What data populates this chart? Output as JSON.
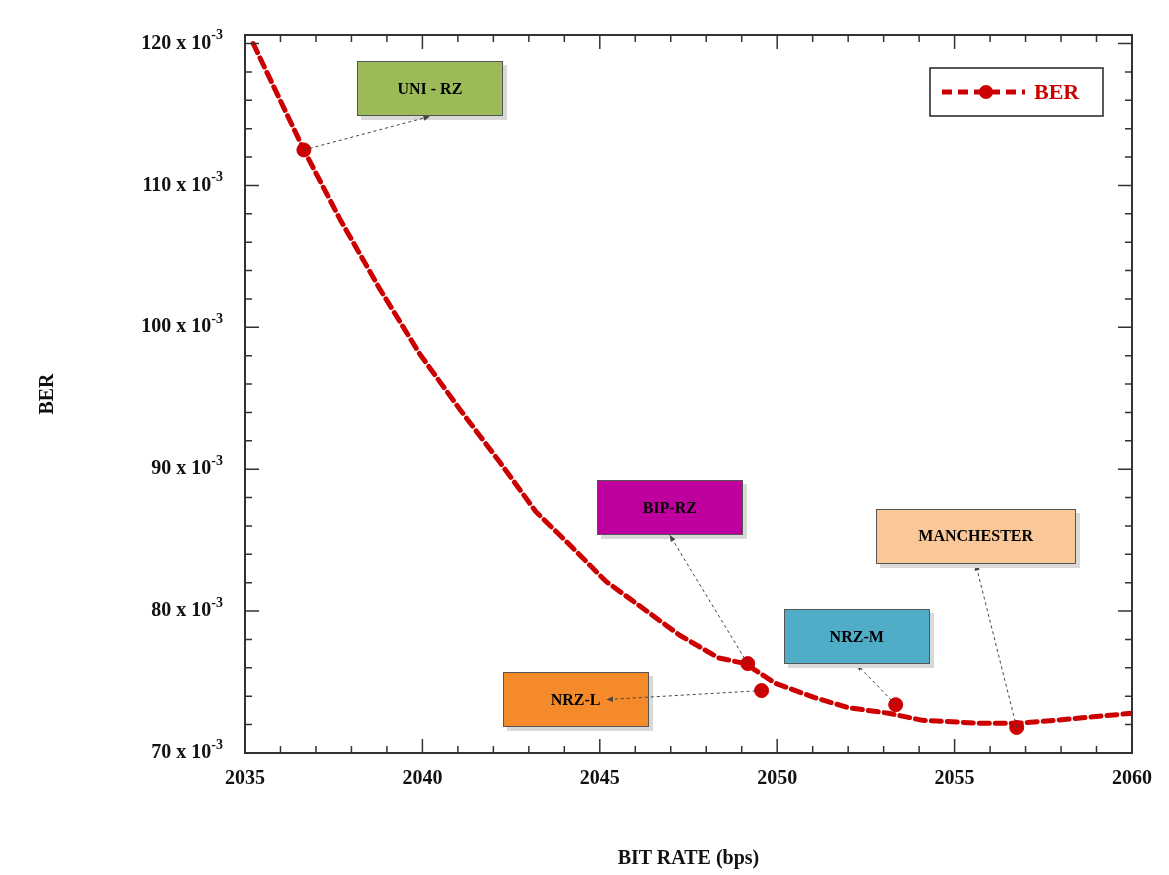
{
  "chart_data": {
    "type": "line",
    "xlabel": "BIT RATE (bps)",
    "ylabel": "BER",
    "xlim": [
      2035,
      2060
    ],
    "xticks": [
      2035,
      2040,
      2045,
      2050,
      2055,
      2060
    ],
    "ylim": [
      0.07,
      0.1206
    ],
    "yticks": [
      {
        "value": 0.07,
        "label": "70 x 10$^{-3}$"
      },
      {
        "value": 0.08,
        "label": "80 x 10$^{-3}$"
      },
      {
        "value": 0.09,
        "label": "90 x 10$^{-3}$"
      },
      {
        "value": 0.1,
        "label": "100 x 10$^{-3}$"
      },
      {
        "value": 0.11,
        "label": "110 x 10$^{-3}$"
      },
      {
        "value": 0.12,
        "label": "120 x 10$^{-3}$"
      }
    ],
    "legend": "top right",
    "series": [
      {
        "name": "BER",
        "type": "line",
        "color": "#cc0000",
        "line_style": "dashed",
        "marker": "none",
        "x": [
          2035.23,
          2036.66,
          2037.68,
          2038.8,
          2039.93,
          2041.06,
          2042.18,
          2043.2,
          2044.18,
          2045.17,
          2046.27,
          2047.25,
          2048.35,
          2049.1,
          2049.96,
          2051.06,
          2052.0,
          2053.14,
          2054.1,
          2055.7,
          2056.8,
          2057.8,
          2060
        ],
        "values": [
          0.12,
          0.1125,
          0.1076,
          0.1027,
          0.0981,
          0.0942,
          0.0905,
          0.087,
          0.0846,
          0.0821,
          0.0801,
          0.0783,
          0.0767,
          0.0763,
          0.0749,
          0.0739,
          0.0732,
          0.0728,
          0.0723,
          0.0721,
          0.0721,
          0.0723,
          0.0728
        ]
      },
      {
        "type": "scatter",
        "color": "#cc0000",
        "marker": "circle",
        "x": [
          2036.66,
          2049.17,
          2049.56,
          2053.34,
          2056.75
        ],
        "values": [
          0.1125,
          0.0763,
          0.0744,
          0.0734,
          0.0718
        ]
      }
    ],
    "annotations": [
      {
        "text": "UNI - RZ",
        "x": 2036.66,
        "y": 0.1125
      },
      {
        "text": "BIP-RZ",
        "x": 2049.17,
        "y": 0.0763
      },
      {
        "text": "NRZ-L",
        "x": 2049.56,
        "y": 0.0744
      },
      {
        "text": "NRZ-M",
        "x": 2053.34,
        "y": 0.0734
      },
      {
        "text": "MANCHESTER",
        "x": 2056.75,
        "y": 0.0718
      }
    ]
  }
}
